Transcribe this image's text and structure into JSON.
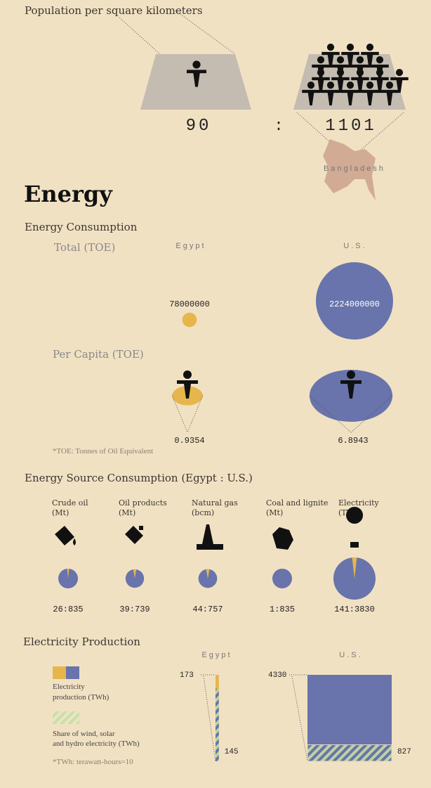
{
  "population": {
    "title": "Population per square kilometers",
    "left": 90,
    "separator": ":",
    "right": 1101,
    "country": "Bangladesh"
  },
  "energy": {
    "heading": "Energy",
    "consumption": {
      "title": "Energy Consumption",
      "columns": [
        "Egypt",
        "U.S."
      ],
      "total": {
        "label": "Total (TOE)",
        "values": [
          78000000,
          2224000000
        ]
      },
      "per_capita": {
        "label": "Per Capita (TOE)",
        "values": [
          0.9354,
          6.8943
        ]
      },
      "note": "*TOE: Tonnes of Oil Equivalent"
    },
    "sources": {
      "title": "Energy Source Consumption (Egypt : U.S.)",
      "separator": ":",
      "items": [
        {
          "name": "Crude oil",
          "unit": "(Mt)",
          "egypt": 26,
          "us": 835
        },
        {
          "name": "Oil products",
          "unit": "(Mt)",
          "egypt": 39,
          "us": 739
        },
        {
          "name": "Natural gas",
          "unit": "(bcm)",
          "egypt": 44,
          "us": 757
        },
        {
          "name": "Coal and lignite",
          "unit": "(Mt)",
          "egypt": 1,
          "us": 835
        },
        {
          "name": "Electricity",
          "unit": "(TWh)",
          "egypt": 141,
          "us": 3830
        }
      ]
    }
  },
  "electricity": {
    "title": "Electricity Production",
    "columns": [
      "Egypt",
      "U.S."
    ],
    "legend": [
      [
        "Electricity",
        "production (TWh)"
      ],
      [
        "Share of wind, solar",
        "and hydro electricity (TWh)"
      ]
    ],
    "note": "*TWh: terawatt-hours=10",
    "egypt": {
      "total": 173,
      "renewable": 145
    },
    "us": {
      "total": 4330,
      "renewable": 827
    }
  }
}
